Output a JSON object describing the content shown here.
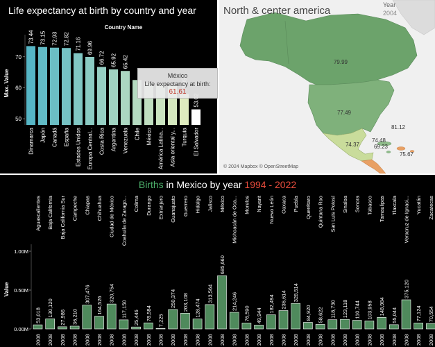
{
  "top_left": {
    "title": "Life expectancy at birth by country and year",
    "header": "Country Name",
    "ylabel": "Max. Value",
    "tooltip": {
      "country": "México",
      "label": "Life expectancy at birth:",
      "value": "61.61"
    }
  },
  "map": {
    "title": "North & center america",
    "year_label": "Year",
    "year_value": "2004",
    "attribution": "© 2024 Mapbox © OpenStreetMap",
    "labels": [
      "79.99",
      "77.49",
      "81.12",
      "74.37",
      "74.48",
      "69.23",
      "75.67"
    ]
  },
  "bottom": {
    "title_parts": [
      "Births",
      " in ",
      "Mexico",
      " by year ",
      "1994 - 2022"
    ],
    "colors": [
      "#4caf6a",
      "#ffffff",
      "#ffffff",
      "#ffffff",
      "#e74c3c"
    ],
    "ylabel": "Value"
  },
  "chart_data": [
    {
      "type": "bar",
      "title": "Life expectancy at birth by country and year",
      "ylabel": "Max. Value",
      "ylim": [
        48,
        76
      ],
      "yticks": [
        50,
        60,
        70
      ],
      "categories": [
        "Dinamarca",
        "Japón",
        "Canadá",
        "España",
        "Estados Unidos",
        "Europa Central...",
        "Costa Rica",
        "Argentina",
        "Venezuela",
        "Chile",
        "México",
        "América Latina...",
        "Asia oriental y...",
        "Turquía",
        "El Salvador"
      ],
      "values": [
        73.44,
        73.15,
        72.93,
        72.82,
        71.16,
        69.96,
        66.72,
        65.92,
        65.42,
        62.5,
        61.61,
        61.2,
        60.5,
        58.05,
        53.02
      ],
      "value_labels": [
        "73.44",
        "73.15",
        "72.93",
        "72.82",
        "71.16",
        "69.96",
        "66.72",
        "65.92",
        "65.42",
        "",
        "",
        "",
        "",
        "58.05",
        "53.02"
      ]
    },
    {
      "type": "bar",
      "title": "Births in Mexico by year 1994 - 2022",
      "ylabel": "Value",
      "ylim": [
        0,
        1000000
      ],
      "ytick_labels": [
        "0.00M",
        "0.50M",
        "1.00M"
      ],
      "x_label": "2008",
      "categories": [
        "Aguascalientes",
        "Baja California",
        "Baja California Sur",
        "Campeche",
        "Chiapas",
        "Chihuahua",
        "Ciudad de México",
        "Coahuila de Zarago...",
        "Colima",
        "Durango",
        "Extranjero",
        "Guanajuato",
        "Guerrero",
        "Hidalgo",
        "Jalisco",
        "México",
        "Michoacán de Oca...",
        "Morelos",
        "Nayarit",
        "Nuevo León",
        "Oaxaca",
        "Puebla",
        "Querétaro",
        "Quintana Roo",
        "San Luis Potosí",
        "Sinaloa",
        "Sonora",
        "Tabasco",
        "Tamaulipas",
        "Tlaxcala",
        "Veracruz de Ignaci...",
        "Yucatán",
        "Zacatecas"
      ],
      "values": [
        53018,
        130120,
        27986,
        36210,
        307476,
        164526,
        320754,
        117150,
        25446,
        78584,
        7225,
        250374,
        203108,
        128474,
        313564,
        685660,
        214246,
        76590,
        49944,
        182494,
        236614,
        328514,
        84920,
        58622,
        118730,
        123118,
        110744,
        103958,
        148984,
        55044,
        375120,
        77124,
        70554
      ],
      "value_labels": [
        "53,018",
        "130,120",
        "27,986",
        "36,210",
        "307,476",
        "164,526",
        "320,754",
        "117,150",
        "25,446",
        "78,584",
        "7,225",
        "250,374",
        "203,108",
        "128,474",
        "313,564",
        "685,660",
        "214,246",
        "76,590",
        "49,944",
        "182,494",
        "236,614",
        "328,514",
        "84,920",
        "58,622",
        "118,730",
        "123,118",
        "110,744",
        "103,958",
        "148,984",
        "55,044",
        "375,120",
        "77,124",
        "70,554"
      ]
    }
  ]
}
